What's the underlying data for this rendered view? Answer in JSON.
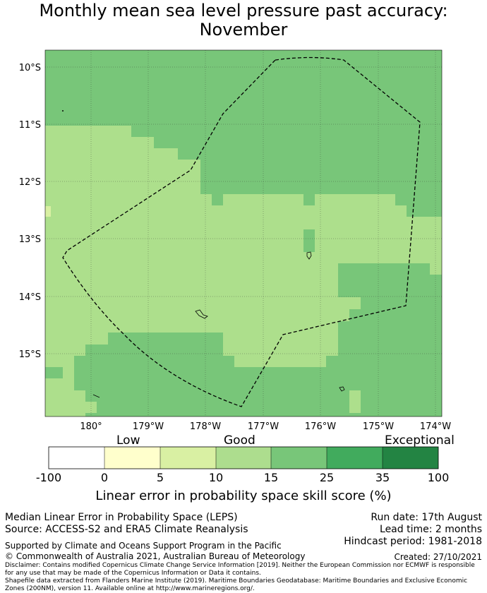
{
  "title": {
    "line1": "Monthly mean sea level pressure past accuracy:",
    "line2": "November"
  },
  "map": {
    "lat_labels": [
      "10°S",
      "11°S",
      "12°S",
      "13°S",
      "14°S",
      "15°S"
    ],
    "lon_labels": [
      "180°",
      "179°W",
      "178°W",
      "177°W",
      "176°W",
      "175°W",
      "174°W"
    ],
    "region_outline": "dashed",
    "colors": {
      "good_light": "#addf8c",
      "good_mid": "#78c679",
      "grid": "#333333"
    }
  },
  "colorbar": {
    "category_labels": [
      "Low",
      "Good",
      "Exceptional"
    ],
    "ticks": [
      "-100",
      "0",
      "5",
      "10",
      "15",
      "25",
      "35",
      "100"
    ],
    "colors": [
      "#ffffff",
      "#ffffcc",
      "#d9f0a3",
      "#addd8e",
      "#78c679",
      "#41ab5d",
      "#238443"
    ],
    "title": "Linear error in probability space skill score (%)"
  },
  "meta": {
    "left1": "Median Linear Error in Probability Space (LEPS)",
    "left2": "Source: ACCESS-S2 and ERA5 Climate Reanalysis",
    "right1": "Run date: 17th August",
    "right2": "Lead time: 2 months",
    "right3": "Hindcast period: 1981-2018",
    "supported": "Supported by Climate and Oceans Support Program in the Pacific",
    "copyright": "© Commonwealth of Australia 2021, Australian Bureau of Meteorology",
    "created": "Created: 27/10/2021",
    "disclaimer": "Disclaimer: Contains modified Copernicus Climate Change Service Information [2019]. Neither the European Commission nor ECMWF is responsible for any use that may be made of the Copernicus Information or Data it contains.",
    "shapefile": "Shapefile data extracted from Flanders Marine Institute (2019). Maritime Boundaries Geodatabase: Maritime Boundaries and Exclusive Economic Zones (200NM), version 11. Available online at http://www.marineregions.org/."
  }
}
